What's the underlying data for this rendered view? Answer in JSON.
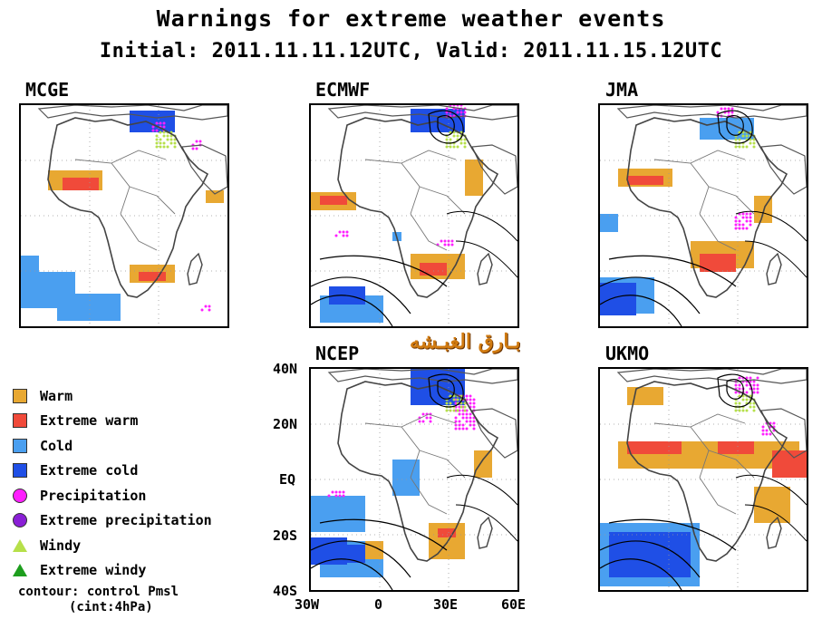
{
  "title": "Warnings for extreme weather events",
  "subtitle": "Initial: 2011.11.11.12UTC, Valid: 2011.11.15.12UTC",
  "panels": {
    "mcge": "MCGE",
    "ecmwf": "ECMWF",
    "jma": "JMA",
    "ncep": "NCEP",
    "ukmo": "UKMO"
  },
  "axes": {
    "lat_ticks": [
      "40N",
      "20N",
      "EQ",
      "20S",
      "40S"
    ],
    "lon_ticks": [
      "30W",
      "0",
      "30E",
      "60E"
    ]
  },
  "legend": [
    {
      "label": "Warm",
      "color": "#e8a832",
      "symbol": "square"
    },
    {
      "label": "Extreme warm",
      "color": "#f04a3a",
      "symbol": "square"
    },
    {
      "label": "Cold",
      "color": "#4a9ff0",
      "symbol": "square"
    },
    {
      "label": "Extreme cold",
      "color": "#1f4fe6",
      "symbol": "square"
    },
    {
      "label": "Precipitation",
      "color": "#ff1fff",
      "symbol": "circle"
    },
    {
      "label": "Extreme precipitation",
      "color": "#8a1fd6",
      "symbol": "circle"
    },
    {
      "label": "Windy",
      "color": "#b6e04a",
      "symbol": "triangle"
    },
    {
      "label": "Extreme windy",
      "color": "#1e9e1e",
      "symbol": "triangle"
    }
  ],
  "contour_note": {
    "line1": "contour: control Pmsl",
    "line2": "(cint:4hPa)"
  },
  "watermark": "بـارق الغبـشه"
}
